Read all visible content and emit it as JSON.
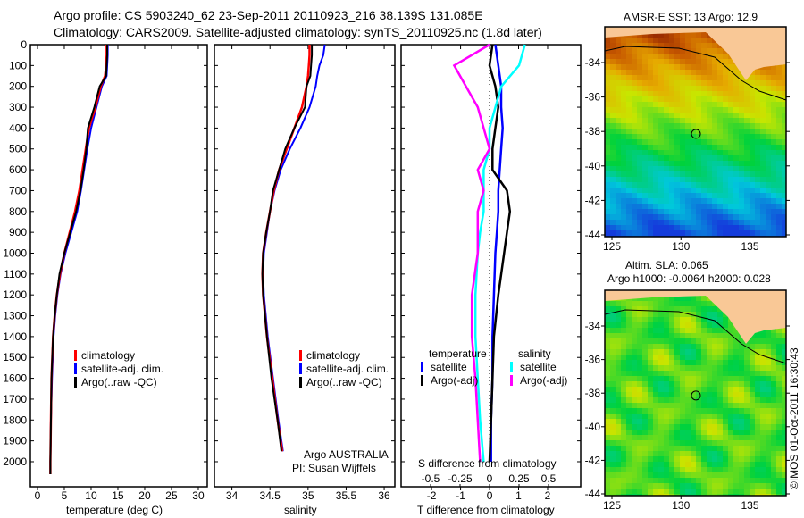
{
  "header": {
    "line1": "Argo profile: CS 5903240_62 23-Sep-2011 20110923_216 38.139S 131.085E",
    "line2": "Climatology: CARS2009. Satellite-adjusted climatology: synTS_20110925.nc (1.8d later)"
  },
  "colors": {
    "climatology": "#ff0000",
    "satellite": "#0000ff",
    "argo": "#000000",
    "s_satellite": "#00ffff",
    "s_argo": "#ff00ff",
    "land": "#f9c896"
  },
  "chart_data": [
    {
      "type": "line",
      "xlabel": "temperature (deg C)",
      "ylabel": "",
      "xlim": [
        -1.33,
        31.67
      ],
      "ylim": [
        2120,
        0
      ],
      "xticks": [
        0,
        5,
        10,
        15,
        20,
        25,
        30
      ],
      "yticks": [
        0,
        100,
        200,
        300,
        400,
        500,
        600,
        700,
        800,
        900,
        1000,
        1100,
        1200,
        1300,
        1400,
        1500,
        1600,
        1700,
        1800,
        1900,
        2000
      ],
      "legend": [
        "climatology",
        "satellite-adj. clim.",
        "Argo(..raw -QC)"
      ],
      "depth": [
        0,
        50,
        100,
        150,
        200,
        300,
        400,
        500,
        600,
        700,
        800,
        900,
        1000,
        1100,
        1200,
        1300,
        1400,
        1600,
        1800,
        2000,
        2060
      ],
      "series": [
        {
          "name": "climatology",
          "values": [
            12.9,
            12.9,
            12.8,
            12.6,
            11.8,
            10.8,
            9.6,
            9.0,
            8.4,
            7.8,
            7.0,
            6.0,
            5.0,
            4.2,
            3.6,
            3.2,
            2.9,
            2.6,
            2.5,
            2.4,
            2.4
          ]
        },
        {
          "name": "satellite-adj. clim.",
          "values": [
            13.1,
            13.1,
            13.0,
            12.9,
            12.0,
            11.0,
            10.0,
            9.3,
            8.7,
            8.1,
            7.4,
            6.3,
            5.2,
            4.3,
            3.7,
            3.3,
            3.0,
            2.7,
            2.5,
            2.4,
            2.4
          ]
        },
        {
          "name": "Argo(..raw -QC)",
          "values": [
            13.0,
            13.0,
            12.9,
            12.8,
            11.6,
            10.6,
            9.4,
            9.1,
            8.6,
            8.0,
            7.2,
            6.1,
            5.0,
            4.1,
            3.6,
            3.2,
            2.9,
            2.6,
            2.5,
            2.4,
            2.4
          ]
        }
      ]
    },
    {
      "type": "line",
      "xlabel": "salinity",
      "xlim": [
        33.77,
        36.14
      ],
      "ylim": [
        2120,
        0
      ],
      "xticks": [
        34,
        34.5,
        35,
        35.5,
        36
      ],
      "legend": [
        "climatology",
        "satellite-adj. clim.",
        "Argo(..raw -QC)"
      ],
      "annotation": [
        "Argo AUSTRALIA",
        "PI: Susan Wijffels"
      ],
      "depth": [
        0,
        50,
        100,
        150,
        200,
        300,
        400,
        500,
        600,
        700,
        800,
        900,
        1000,
        1100,
        1200,
        1400,
        1600,
        1800,
        1950
      ],
      "series": [
        {
          "name": "climatology",
          "values": [
            35.02,
            35.02,
            35.01,
            35.0,
            34.98,
            34.92,
            34.82,
            34.72,
            34.62,
            34.55,
            34.5,
            34.45,
            34.41,
            34.4,
            34.41,
            34.46,
            34.53,
            34.6,
            34.66
          ]
        },
        {
          "name": "satellite-adj. clim.",
          "values": [
            35.22,
            35.2,
            35.15,
            35.12,
            35.1,
            35.02,
            34.9,
            34.76,
            34.64,
            34.56,
            34.5,
            34.46,
            34.42,
            34.41,
            34.42,
            34.47,
            34.54,
            34.61,
            34.67
          ]
        },
        {
          "name": "Argo(..raw -QC)",
          "values": [
            35.05,
            35.05,
            35.04,
            35.03,
            34.98,
            34.96,
            34.82,
            34.7,
            34.62,
            34.54,
            34.5,
            34.45,
            34.41,
            34.4,
            34.41,
            34.46,
            34.52,
            34.6,
            34.65
          ]
        }
      ]
    },
    {
      "type": "line",
      "xlabel": "T difference from climatology",
      "x2label": "S difference from climatology",
      "xlim": [
        -3.05,
        3.14
      ],
      "xticks": [
        -2,
        -1,
        0,
        1,
        2
      ],
      "x2ticks": [
        "-0.5",
        "-0.25",
        "0",
        "0.25",
        "0.5"
      ],
      "ylim": [
        2120,
        0
      ],
      "legend_temperature": [
        "temperature",
        "satellite",
        "Argo(-adj)"
      ],
      "legend_salinity": [
        "salinity",
        "satellite",
        "Argo(-adj)"
      ],
      "depth": [
        0,
        100,
        200,
        300,
        400,
        500,
        600,
        700,
        800,
        900,
        1000,
        1200,
        1400,
        1600,
        1800,
        2000
      ],
      "series": [
        {
          "name": "T satellite",
          "values": [
            0.2,
            0.3,
            0.4,
            0.4,
            0.45,
            0.4,
            0.35,
            0.3,
            0.3,
            0.25,
            0.2,
            0.15,
            0.1,
            0.1,
            0.05,
            0.05
          ]
        },
        {
          "name": "T Argo(-adj)",
          "values": [
            0.1,
            0.0,
            0.2,
            0.3,
            0.2,
            0.1,
            0.1,
            0.6,
            0.7,
            0.6,
            0.5,
            0.3,
            0.15,
            0.1,
            0.05,
            0.0
          ]
        },
        {
          "name": "S satellite",
          "values": [
            0.3,
            0.25,
            0.1,
            0.05,
            0.0,
            0.0,
            -0.05,
            -0.05,
            -0.05,
            -0.08,
            -0.1,
            -0.12,
            -0.12,
            -0.1,
            -0.08,
            -0.05
          ]
        },
        {
          "name": "S Argo(-adj)",
          "values": [
            0.0,
            -0.3,
            -0.2,
            -0.1,
            -0.05,
            0.0,
            -0.1,
            -0.05,
            -0.1,
            -0.1,
            -0.1,
            -0.15,
            -0.15,
            -0.12,
            -0.1,
            -0.08
          ]
        }
      ]
    },
    {
      "type": "heatmap",
      "title": "AMSR-E SST: 13 Argo: 12.9",
      "xticks": [
        125,
        130,
        135
      ],
      "yticks": [
        -34,
        -36,
        -38,
        -40,
        -42,
        -44
      ],
      "marker": [
        131.085,
        -38.139
      ]
    },
    {
      "type": "heatmap",
      "title": "Altim. SLA: 0.065",
      "subtitle": "Argo h1000: -0.0064 h2000: 0.028",
      "xticks": [
        125,
        130,
        135
      ],
      "yticks": [
        -34,
        -36,
        -38,
        -40,
        -42,
        -44
      ],
      "marker": [
        131.085,
        -38.139
      ]
    }
  ],
  "footer": {
    "credit": "©IMOS 01-Oct-2011 16:30:43"
  }
}
